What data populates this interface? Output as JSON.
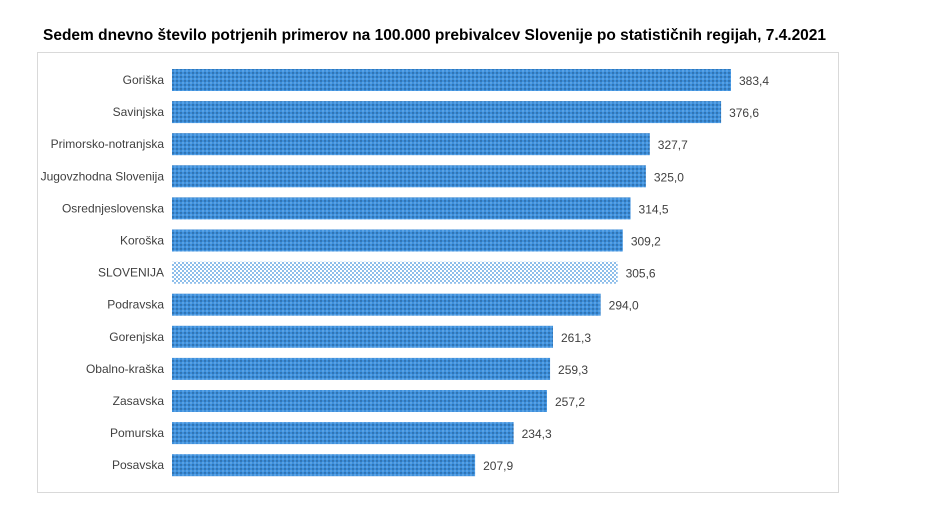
{
  "chart_data": {
    "type": "bar",
    "orientation": "horizontal",
    "title": "Sedem dnevno število potrjenih primerov na 100.000  prebivalcev Slovenije po statističnih regijah, 7.4.2021",
    "categories": [
      "Goriška",
      "Savinjska",
      "Primorsko-notranjska",
      "Jugovzhodna Slovenija",
      "Osrednjeslovenska",
      "Koroška",
      "SLOVENIJA",
      "Podravska",
      "Gorenjska",
      "Obalno-kraška",
      "Zasavska",
      "Pomurska",
      "Posavska"
    ],
    "values": [
      383.4,
      376.6,
      327.7,
      325.0,
      314.5,
      309.2,
      305.6,
      294.0,
      261.3,
      259.3,
      257.2,
      234.3,
      207.9
    ],
    "data_labels": [
      "383,4",
      "376,6",
      "327,7",
      "325,0",
      "314,5",
      "309,2",
      "305,6",
      "294,0",
      "261,3",
      "259,3",
      "257,2",
      "234,3",
      "207,9"
    ],
    "highlighted_category": "SLOVENIJA",
    "xlim": [
      0,
      383.4
    ],
    "grid": false,
    "legend": "none",
    "colors": {
      "bar": "#3d8fdc",
      "bar_highlight": "#a9d3f2",
      "pattern_dots": "#1f4e79"
    }
  }
}
